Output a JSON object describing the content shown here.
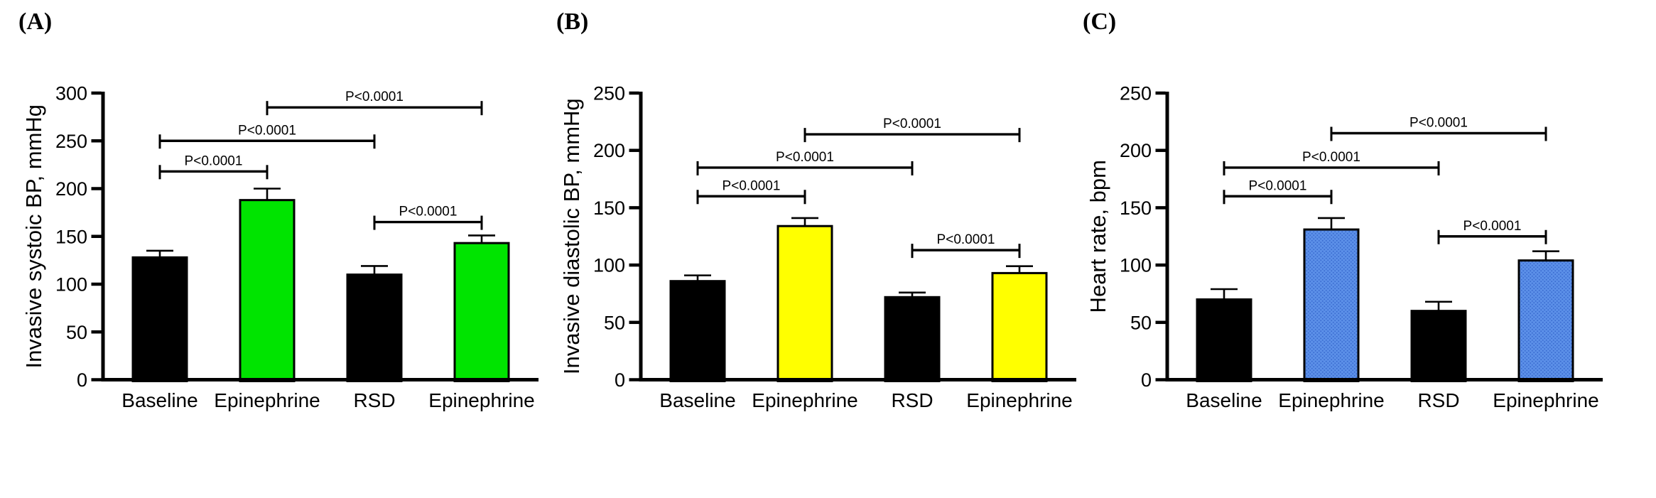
{
  "figure_colors": {
    "axis": "#000000",
    "text": "#000000",
    "background": "#ffffff",
    "black_bar": "#000000",
    "green_bar": "#00E400",
    "yellow_bar": "#FFFF00",
    "blue_bar": "#5C90E8",
    "blue_bar_dot": "#3A6CD0"
  },
  "chart_data": [
    {
      "type": "bar",
      "panel_label": "(A)",
      "ylabel": "Invasive systoic BP, mmHg",
      "xlabel": "",
      "ylim": [
        0,
        300
      ],
      "ytick_step": 50,
      "yticks": [
        "0",
        "50",
        "100",
        "150",
        "200",
        "250",
        "300"
      ],
      "grid": false,
      "legend": "none",
      "categories": [
        "Baseline",
        "Epinephrine",
        "RSD",
        "Epinephrine"
      ],
      "values": [
        128,
        188,
        110,
        143
      ],
      "errors": [
        7,
        12,
        9,
        8
      ],
      "bar_colors": [
        "#000000",
        "#00E400",
        "#000000",
        "#00E400"
      ],
      "bar_texture": [
        "solid",
        "solid",
        "solid",
        "solid"
      ],
      "comparisons": [
        {
          "from": 0,
          "to": 1,
          "y": 218,
          "label": "P<0.0001"
        },
        {
          "from": 0,
          "to": 2,
          "y": 250,
          "label": "P<0.0001"
        },
        {
          "from": 1,
          "to": 3,
          "y": 285,
          "label": "P<0.0001"
        },
        {
          "from": 2,
          "to": 3,
          "y": 165,
          "label": "P<0.0001"
        }
      ]
    },
    {
      "type": "bar",
      "panel_label": "(B)",
      "ylabel": "Invasive diastolic BP, mmHg",
      "xlabel": "",
      "ylim": [
        0,
        250
      ],
      "ytick_step": 50,
      "yticks": [
        "0",
        "50",
        "100",
        "150",
        "200",
        "250"
      ],
      "grid": false,
      "legend": "none",
      "categories": [
        "Baseline",
        "Epinephrine",
        "RSD",
        "Epinephrine"
      ],
      "values": [
        86,
        134,
        72,
        93
      ],
      "errors": [
        5,
        7,
        4,
        6
      ],
      "bar_colors": [
        "#000000",
        "#FFFF00",
        "#000000",
        "#FFFF00"
      ],
      "bar_texture": [
        "solid",
        "solid",
        "solid",
        "solid"
      ],
      "comparisons": [
        {
          "from": 0,
          "to": 1,
          "y": 160,
          "label": "P<0.0001"
        },
        {
          "from": 0,
          "to": 2,
          "y": 185,
          "label": "P<0.0001"
        },
        {
          "from": 1,
          "to": 3,
          "y": 214,
          "label": "P<0.0001"
        },
        {
          "from": 2,
          "to": 3,
          "y": 113,
          "label": "P<0.0001"
        }
      ]
    },
    {
      "type": "bar",
      "panel_label": "(C)",
      "ylabel": "Heart rate, bpm",
      "xlabel": "",
      "ylim": [
        0,
        250
      ],
      "ytick_step": 50,
      "yticks": [
        "0",
        "50",
        "100",
        "150",
        "200",
        "250"
      ],
      "grid": false,
      "legend": "none",
      "categories": [
        "Baseline",
        "Epinephrine",
        "RSD",
        "Epinephrine"
      ],
      "values": [
        70,
        131,
        60,
        104
      ],
      "errors": [
        9,
        10,
        8,
        8
      ],
      "bar_colors": [
        "#000000",
        "#5C90E8",
        "#000000",
        "#5C90E8"
      ],
      "bar_texture": [
        "solid",
        "stipple",
        "solid",
        "stipple"
      ],
      "comparisons": [
        {
          "from": 0,
          "to": 1,
          "y": 160,
          "label": "P<0.0001"
        },
        {
          "from": 0,
          "to": 2,
          "y": 185,
          "label": "P<0.0001"
        },
        {
          "from": 1,
          "to": 3,
          "y": 215,
          "label": "P<0.0001"
        },
        {
          "from": 2,
          "to": 3,
          "y": 125,
          "label": "P<0.0001"
        }
      ]
    }
  ]
}
